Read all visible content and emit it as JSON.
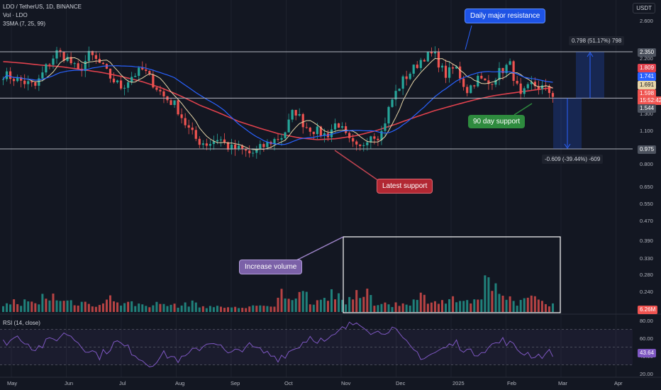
{
  "header": {
    "symbol_line": "LDO / TetherUS, 1D, BINANCE",
    "vol_line": "Vol · LDO",
    "sma_line": "3SMA (7, 25, 99)",
    "currency_button": "USDT"
  },
  "rsi_header": "RSI (14, close)",
  "annotations": {
    "resistance": "Daily major resistance",
    "support_90": "90 day support",
    "latest_support": "Latest support",
    "volume": "Increase volume",
    "measure_up": "0.798 (51.17%) 798",
    "measure_down": "-0.609 (-39.44%) -609"
  },
  "price_badges": {
    "resistance": "2.350",
    "sma_a": "1.809",
    "sma_b": "1.741",
    "sma_c": "1.691",
    "last": "1.598",
    "countdown": "15:52:42",
    "support": "1.544",
    "low": "0.975"
  },
  "volume_badge": "6.26M",
  "rsi_badge": "43.64",
  "colors": {
    "up": "#26a69a",
    "down": "#ef5350",
    "sma_fast": "#e6d5a8",
    "sma_mid": "#2962ff",
    "sma_slow": "#e0414d",
    "rsi": "#7e57c2",
    "hline": "#b2b5be",
    "callout_blue": "#1e53e5",
    "callout_green": "#2e8b3e",
    "callout_red": "#b22833",
    "callout_purple": "#7b61a8"
  },
  "chart_data": {
    "type": "candlestick",
    "x_axis_labels": [
      "May",
      "Jun",
      "Jul",
      "Aug",
      "Sep",
      "Oct",
      "Nov",
      "Dec",
      "2025",
      "Feb",
      "Mar",
      "Apr"
    ],
    "price_axis_labels": [
      "2.600",
      "2.200",
      "1.800",
      "1.300",
      "1.100",
      "0.800",
      "0.650",
      "0.550",
      "0.470",
      "0.390",
      "0.330",
      "0.280",
      "0.240"
    ],
    "rsi_axis_labels": [
      "80.00",
      "60.00",
      "40.00",
      "20.00"
    ],
    "price_scale": "log",
    "horizontal_levels": [
      2.35,
      1.544,
      0.975
    ],
    "close_path_usdt": [
      1.92,
      1.85,
      1.78,
      1.72,
      2.05,
      2.35,
      2.2,
      1.95,
      2.3,
      2.1,
      1.85,
      1.7,
      1.9,
      2.0,
      1.75,
      1.55,
      1.45,
      1.2,
      1.05,
      1.02,
      1.08,
      0.98,
      0.97,
      0.93,
      0.99,
      1.05,
      1.1,
      1.4,
      1.2,
      1.15,
      1.1,
      1.25,
      1.05,
      0.96,
      1.12,
      1.1,
      1.5,
      1.8,
      2.0,
      2.25,
      2.3,
      1.9,
      2.05,
      1.65,
      1.85,
      1.75,
      1.95,
      2.1,
      1.55,
      1.75,
      1.7,
      1.6
    ],
    "sma_99_path_usdt": [
      2.15,
      2.12,
      2.08,
      2.05,
      2.0,
      1.95,
      1.88,
      1.8,
      1.7,
      1.58,
      1.45,
      1.35,
      1.25,
      1.18,
      1.12,
      1.08,
      1.06,
      1.07,
      1.1,
      1.15,
      1.22,
      1.3,
      1.38,
      1.45,
      1.52,
      1.58,
      1.62,
      1.66,
      1.7
    ],
    "volume_relative": [
      0.2,
      0.28,
      0.22,
      0.45,
      0.3,
      0.25,
      0.2,
      0.38,
      0.22,
      0.18,
      0.2,
      0.15,
      0.22,
      0.12,
      0.1,
      0.08,
      0.14,
      0.1,
      0.55,
      0.5,
      0.35,
      0.65,
      0.3,
      0.5,
      0.25,
      0.2,
      0.3,
      0.45,
      0.3,
      0.35,
      0.25,
      1.0,
      0.45,
      0.3,
      0.4,
      0.25
    ],
    "rsi_path": [
      55,
      62,
      48,
      58,
      66,
      50,
      40,
      56,
      45,
      30,
      42,
      35,
      48,
      58,
      40,
      52,
      45,
      38,
      48,
      62,
      55,
      70,
      80,
      65,
      72,
      52,
      38,
      46,
      55,
      42,
      50,
      58,
      45,
      40,
      44
    ]
  }
}
